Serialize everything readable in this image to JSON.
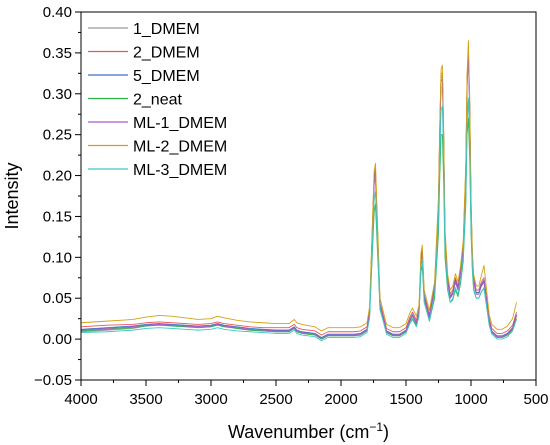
{
  "chart_data": {
    "type": "line",
    "xlabel": "Wavenumber (cm",
    "xlabel_sup": "−1",
    "xlabel_tail": ")",
    "ylabel": "Intensity",
    "xlim": [
      4000,
      500
    ],
    "ylim": [
      -0.05,
      0.4
    ],
    "x_reversed": true,
    "x_ticks": [
      4000,
      3500,
      3000,
      2500,
      2000,
      1500,
      1000,
      500
    ],
    "x_tick_labels": [
      "4000",
      "3500",
      "3000",
      "2500",
      "2000",
      "1500",
      "1000",
      "500"
    ],
    "y_ticks": [
      -0.05,
      0,
      0.05,
      0.1,
      0.15,
      0.2,
      0.25,
      0.3,
      0.35,
      0.4
    ],
    "y_tick_labels": [
      "−0.05",
      "0.00",
      "0.05",
      "0.10",
      "0.15",
      "0.20",
      "0.25",
      "0.30",
      "0.35",
      "0.40"
    ],
    "grid": false,
    "legend_position": "top-left",
    "x": [
      4000,
      3800,
      3600,
      3500,
      3400,
      3300,
      3200,
      3100,
      3000,
      2950,
      2900,
      2800,
      2700,
      2600,
      2500,
      2400,
      2360,
      2340,
      2300,
      2200,
      2150,
      2100,
      2000,
      1900,
      1850,
      1800,
      1780,
      1760,
      1745,
      1735,
      1720,
      1700,
      1650,
      1600,
      1550,
      1500,
      1470,
      1450,
      1420,
      1400,
      1385,
      1375,
      1360,
      1320,
      1280,
      1250,
      1240,
      1230,
      1220,
      1210,
      1200,
      1180,
      1160,
      1140,
      1120,
      1100,
      1080,
      1060,
      1040,
      1030,
      1020,
      1010,
      1000,
      990,
      980,
      960,
      940,
      920,
      900,
      880,
      860,
      840,
      800,
      760,
      720,
      680,
      650
    ],
    "series": [
      {
        "name": "1_DMEM",
        "color": "#9a9aa0",
        "values": [
          0.009,
          0.011,
          0.013,
          0.016,
          0.018,
          0.017,
          0.016,
          0.014,
          0.015,
          0.018,
          0.016,
          0.013,
          0.011,
          0.01,
          0.009,
          0.009,
          0.013,
          0.009,
          0.007,
          0.005,
          0.0,
          0.004,
          0.004,
          0.004,
          0.005,
          0.01,
          0.03,
          0.12,
          0.19,
          0.2,
          0.13,
          0.04,
          0.008,
          0.004,
          0.004,
          0.009,
          0.022,
          0.028,
          0.018,
          0.032,
          0.095,
          0.105,
          0.05,
          0.025,
          0.06,
          0.16,
          0.25,
          0.32,
          0.32,
          0.24,
          0.12,
          0.07,
          0.05,
          0.055,
          0.07,
          0.06,
          0.08,
          0.11,
          0.2,
          0.31,
          0.35,
          0.28,
          0.16,
          0.1,
          0.07,
          0.055,
          0.055,
          0.065,
          0.07,
          0.045,
          0.02,
          0.008,
          0.002,
          0.002,
          0.005,
          0.012,
          0.028
        ]
      },
      {
        "name": "2_DMEM",
        "color": "#e8555a",
        "values": [
          0.015,
          0.017,
          0.018,
          0.02,
          0.021,
          0.02,
          0.019,
          0.018,
          0.019,
          0.021,
          0.019,
          0.017,
          0.015,
          0.014,
          0.014,
          0.014,
          0.018,
          0.014,
          0.012,
          0.01,
          0.005,
          0.009,
          0.009,
          0.009,
          0.01,
          0.015,
          0.035,
          0.13,
          0.2,
          0.21,
          0.14,
          0.045,
          0.013,
          0.009,
          0.009,
          0.014,
          0.027,
          0.033,
          0.023,
          0.037,
          0.1,
          0.11,
          0.055,
          0.03,
          0.065,
          0.17,
          0.26,
          0.325,
          0.325,
          0.25,
          0.13,
          0.075,
          0.055,
          0.06,
          0.075,
          0.065,
          0.085,
          0.115,
          0.21,
          0.32,
          0.355,
          0.29,
          0.17,
          0.105,
          0.075,
          0.06,
          0.06,
          0.07,
          0.075,
          0.05,
          0.025,
          0.013,
          0.007,
          0.007,
          0.01,
          0.017,
          0.033
        ]
      },
      {
        "name": "5_DMEM",
        "color": "#3f6fc4",
        "values": [
          0.012,
          0.014,
          0.016,
          0.018,
          0.019,
          0.018,
          0.017,
          0.016,
          0.017,
          0.019,
          0.017,
          0.015,
          0.013,
          0.012,
          0.011,
          0.011,
          0.015,
          0.011,
          0.009,
          0.007,
          0.002,
          0.006,
          0.006,
          0.006,
          0.007,
          0.012,
          0.032,
          0.125,
          0.195,
          0.205,
          0.135,
          0.042,
          0.01,
          0.006,
          0.006,
          0.011,
          0.024,
          0.03,
          0.02,
          0.034,
          0.097,
          0.107,
          0.052,
          0.027,
          0.062,
          0.165,
          0.255,
          0.322,
          0.322,
          0.245,
          0.125,
          0.072,
          0.052,
          0.057,
          0.072,
          0.062,
          0.082,
          0.112,
          0.205,
          0.315,
          0.345,
          0.285,
          0.165,
          0.102,
          0.072,
          0.057,
          0.057,
          0.067,
          0.072,
          0.047,
          0.022,
          0.01,
          0.004,
          0.004,
          0.007,
          0.014,
          0.03
        ]
      },
      {
        "name": "2_neat",
        "color": "#2db54a",
        "values": [
          0.01,
          0.012,
          0.014,
          0.016,
          0.017,
          0.016,
          0.015,
          0.014,
          0.015,
          0.017,
          0.015,
          0.013,
          0.011,
          0.01,
          0.009,
          0.009,
          0.013,
          0.009,
          0.007,
          0.005,
          0.0,
          0.004,
          0.004,
          0.004,
          0.005,
          0.01,
          0.028,
          0.1,
          0.155,
          0.165,
          0.11,
          0.036,
          0.008,
          0.004,
          0.004,
          0.009,
          0.02,
          0.025,
          0.017,
          0.03,
          0.082,
          0.09,
          0.045,
          0.022,
          0.05,
          0.13,
          0.2,
          0.25,
          0.25,
          0.19,
          0.1,
          0.06,
          0.045,
          0.048,
          0.06,
          0.052,
          0.068,
          0.095,
          0.165,
          0.25,
          0.27,
          0.22,
          0.13,
          0.085,
          0.06,
          0.05,
          0.05,
          0.058,
          0.062,
          0.04,
          0.018,
          0.008,
          0.002,
          0.002,
          0.005,
          0.011,
          0.025
        ]
      },
      {
        "name": "ML-1_DMEM",
        "color": "#a65cc8",
        "values": [
          0.011,
          0.013,
          0.015,
          0.017,
          0.018,
          0.017,
          0.016,
          0.015,
          0.016,
          0.018,
          0.016,
          0.014,
          0.012,
          0.011,
          0.01,
          0.01,
          0.014,
          0.01,
          0.008,
          0.006,
          0.001,
          0.005,
          0.005,
          0.005,
          0.006,
          0.011,
          0.031,
          0.122,
          0.19,
          0.2,
          0.132,
          0.041,
          0.009,
          0.005,
          0.005,
          0.01,
          0.023,
          0.029,
          0.019,
          0.033,
          0.095,
          0.104,
          0.05,
          0.026,
          0.06,
          0.16,
          0.25,
          0.315,
          0.318,
          0.24,
          0.122,
          0.07,
          0.05,
          0.055,
          0.07,
          0.06,
          0.08,
          0.11,
          0.2,
          0.31,
          0.345,
          0.28,
          0.16,
          0.1,
          0.07,
          0.055,
          0.055,
          0.065,
          0.07,
          0.045,
          0.02,
          0.009,
          0.003,
          0.003,
          0.006,
          0.013,
          0.029
        ]
      },
      {
        "name": "ML-2_DMEM",
        "color": "#d4a017",
        "values": [
          0.02,
          0.022,
          0.024,
          0.027,
          0.029,
          0.028,
          0.026,
          0.024,
          0.025,
          0.028,
          0.026,
          0.023,
          0.021,
          0.02,
          0.019,
          0.019,
          0.024,
          0.02,
          0.018,
          0.015,
          0.01,
          0.014,
          0.014,
          0.014,
          0.015,
          0.02,
          0.04,
          0.135,
          0.205,
          0.215,
          0.145,
          0.05,
          0.018,
          0.014,
          0.014,
          0.019,
          0.032,
          0.038,
          0.028,
          0.042,
          0.105,
          0.115,
          0.06,
          0.035,
          0.07,
          0.175,
          0.265,
          0.33,
          0.335,
          0.255,
          0.135,
          0.08,
          0.06,
          0.065,
          0.08,
          0.07,
          0.09,
          0.12,
          0.215,
          0.325,
          0.365,
          0.295,
          0.175,
          0.11,
          0.08,
          0.065,
          0.065,
          0.078,
          0.09,
          0.06,
          0.03,
          0.018,
          0.012,
          0.012,
          0.016,
          0.025,
          0.045
        ]
      },
      {
        "name": "ML-3_DMEM",
        "color": "#3fc6c6",
        "values": [
          0.008,
          0.009,
          0.011,
          0.013,
          0.014,
          0.013,
          0.012,
          0.011,
          0.012,
          0.014,
          0.012,
          0.01,
          0.009,
          0.008,
          0.007,
          0.007,
          0.011,
          0.007,
          0.005,
          0.003,
          -0.002,
          0.002,
          0.002,
          0.002,
          0.003,
          0.008,
          0.026,
          0.11,
          0.17,
          0.18,
          0.12,
          0.038,
          0.006,
          0.002,
          0.002,
          0.007,
          0.019,
          0.024,
          0.015,
          0.028,
          0.088,
          0.097,
          0.045,
          0.022,
          0.055,
          0.145,
          0.225,
          0.28,
          0.285,
          0.215,
          0.11,
          0.062,
          0.045,
          0.05,
          0.063,
          0.055,
          0.072,
          0.1,
          0.175,
          0.26,
          0.295,
          0.24,
          0.14,
          0.09,
          0.062,
          0.05,
          0.05,
          0.058,
          0.063,
          0.04,
          0.017,
          0.006,
          0.0,
          0.0,
          0.003,
          0.01,
          0.024
        ]
      }
    ]
  }
}
